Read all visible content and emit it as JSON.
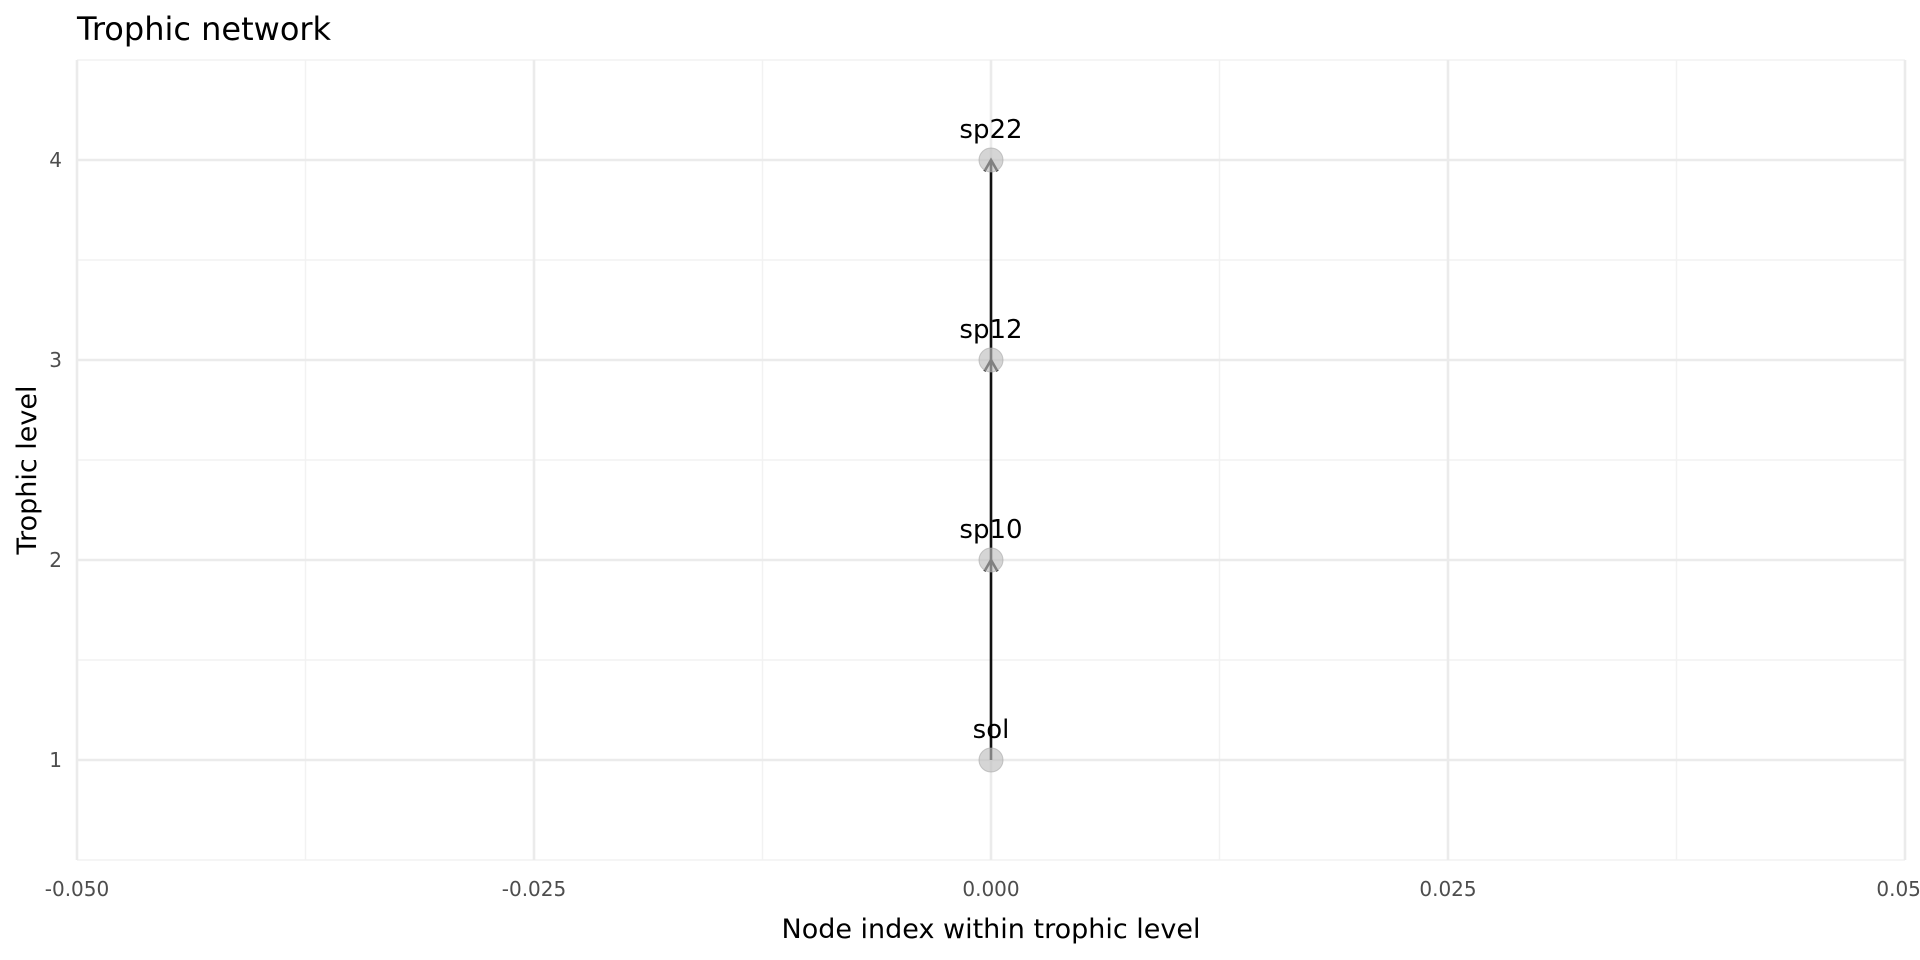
{
  "chart_data": {
    "type": "scatter",
    "title": "Trophic network",
    "xlabel": "Node index within trophic level",
    "ylabel": "Trophic level",
    "xlim": [
      -0.05,
      0.05
    ],
    "ylim": [
      0.5,
      4.5
    ],
    "x_ticks": [
      -0.05,
      -0.025,
      0,
      0.025,
      0.05
    ],
    "x_tick_labels": [
      "-0.050",
      "-0.025",
      "0.000",
      "0.025",
      "0.050"
    ],
    "y_ticks": [
      1,
      2,
      3,
      4
    ],
    "y_tick_labels": [
      "1",
      "2",
      "3",
      "4"
    ],
    "grid": true,
    "nodes": [
      {
        "name": "sol",
        "x": 0,
        "y": 1
      },
      {
        "name": "sp10",
        "x": 0,
        "y": 2
      },
      {
        "name": "sp12",
        "x": 0,
        "y": 3
      },
      {
        "name": "sp22",
        "x": 0,
        "y": 4
      }
    ],
    "edges": [
      {
        "from": "sol",
        "to": "sp10"
      },
      {
        "from": "sp10",
        "to": "sp12"
      },
      {
        "from": "sp12",
        "to": "sp22"
      }
    ]
  }
}
